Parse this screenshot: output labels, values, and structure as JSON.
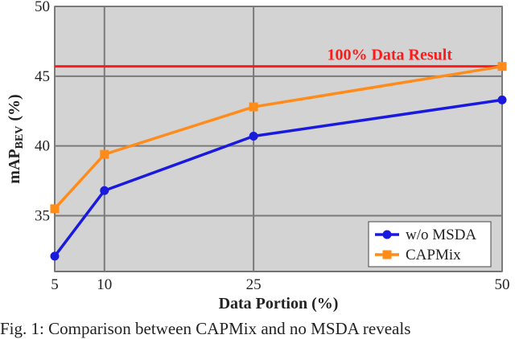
{
  "chart_data": {
    "type": "line",
    "xlabel": "Data Portion (%)",
    "ylabel_main": "mAP",
    "ylabel_sub": "BEV",
    "ylabel_unit": "(%)",
    "x": [
      5,
      10,
      25,
      50
    ],
    "x_ticks": [
      5,
      10,
      25,
      50
    ],
    "y_ticks": [
      35,
      40,
      45,
      50
    ],
    "xlim": [
      5,
      50
    ],
    "ylim": [
      31,
      50
    ],
    "grid": true,
    "legend_position": "bottom-right",
    "series": [
      {
        "name": "w/o MSDA",
        "values": [
          32.1,
          36.8,
          40.7,
          43.3
        ],
        "color": "#1a1adf",
        "marker": "circle"
      },
      {
        "name": "CAPMix",
        "values": [
          35.5,
          39.4,
          42.8,
          45.7
        ],
        "color": "#ff8c1a",
        "marker": "square"
      }
    ],
    "reference_line": {
      "label": "100% Data Result",
      "value": 45.7,
      "color": "#ff1a1a"
    },
    "background_color": "#d3d3d3"
  },
  "caption": "Fig. 1: Comparison between CAPMix and no MSDA reveals"
}
